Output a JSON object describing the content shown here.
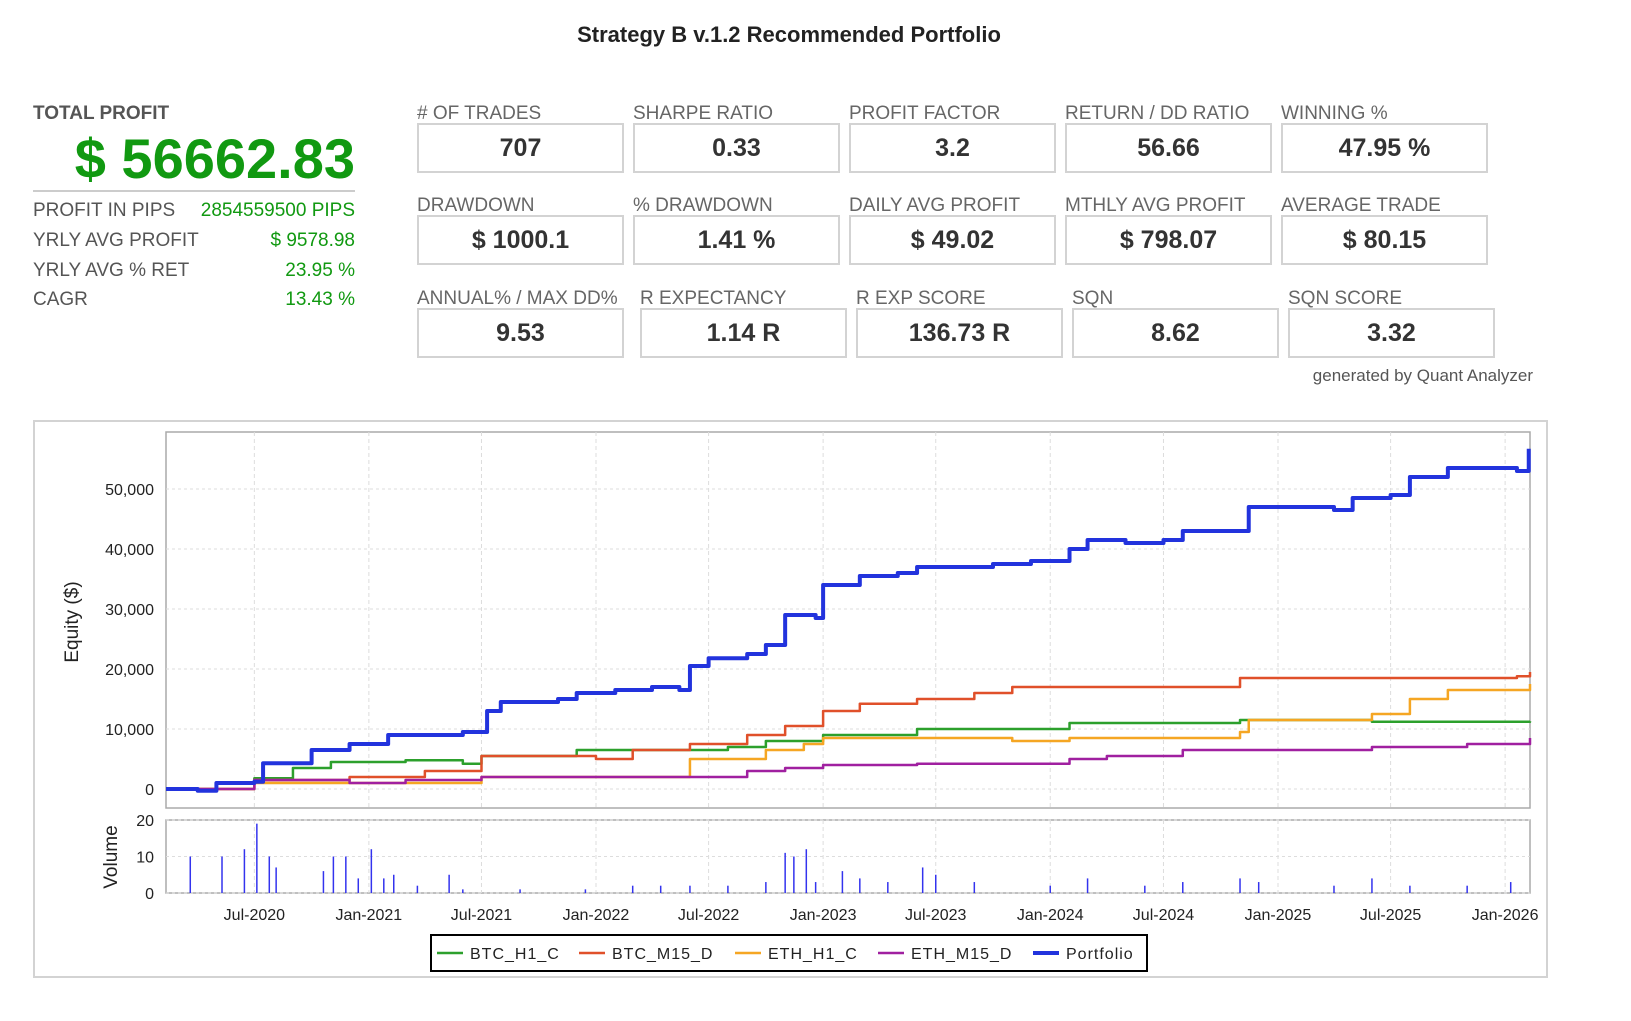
{
  "title": "Strategy B v.1.2 Recommended Portfolio",
  "summary": {
    "total_profit_label": "TOTAL PROFIT",
    "total_profit_value": "$ 56662.83",
    "rows": [
      {
        "label": "PROFIT IN PIPS",
        "value": "2854559500 PIPS"
      },
      {
        "label": "YRLY AVG PROFIT",
        "value": "$ 9578.98"
      },
      {
        "label": "YRLY AVG % RET",
        "value": "23.95 %"
      },
      {
        "label": "CAGR",
        "value": "13.43 %"
      }
    ]
  },
  "metrics": [
    {
      "label": "# OF TRADES",
      "value": "707"
    },
    {
      "label": "SHARPE RATIO",
      "value": "0.33"
    },
    {
      "label": "PROFIT FACTOR",
      "value": "3.2"
    },
    {
      "label": "RETURN / DD RATIO",
      "value": "56.66"
    },
    {
      "label": "WINNING %",
      "value": "47.95 %"
    },
    {
      "label": "DRAWDOWN",
      "value": "$ 1000.1"
    },
    {
      "label": "% DRAWDOWN",
      "value": "1.41 %"
    },
    {
      "label": "DAILY AVG PROFIT",
      "value": "$ 49.02"
    },
    {
      "label": "MTHLY AVG PROFIT",
      "value": "$ 798.07"
    },
    {
      "label": "AVERAGE TRADE",
      "value": "$ 80.15"
    },
    {
      "label": "ANNUAL% / MAX DD%",
      "value": "9.53"
    },
    {
      "label": "R EXPECTANCY",
      "value": "1.14 R"
    },
    {
      "label": "R EXP SCORE",
      "value": "136.73 R"
    },
    {
      "label": "SQN",
      "value": "8.62"
    },
    {
      "label": "SQN SCORE",
      "value": "3.32"
    }
  ],
  "generated_by": "generated by Quant Analyzer",
  "chart_data": {
    "type": "line",
    "ylabel": "Equity ($)",
    "ylim": [
      -2000,
      60000
    ],
    "yticks": [
      0,
      10000,
      20000,
      30000,
      40000,
      50000
    ],
    "ytick_labels": [
      "0",
      "10,000",
      "20,000",
      "30,000",
      "40,000",
      "50,000"
    ],
    "xlim": [
      "2020-02-10",
      "2026-02-10"
    ],
    "xticks": [
      "2020-07-01",
      "2021-01-01",
      "2021-07-01",
      "2022-01-01",
      "2022-07-01",
      "2023-01-01",
      "2023-07-01",
      "2024-01-01",
      "2024-07-01",
      "2025-01-01",
      "2025-07-01",
      "2026-01-01"
    ],
    "xtick_labels": [
      "Jul-2020",
      "Jan-2021",
      "Jul-2021",
      "Jan-2022",
      "Jul-2022",
      "Jan-2023",
      "Jul-2023",
      "Jan-2024",
      "Jul-2024",
      "Jan-2025",
      "Jul-2025",
      "Jan-2026"
    ],
    "grid": true,
    "legend_position": "bottom",
    "series": [
      {
        "name": "BTC_H1_C",
        "color": "#2ca02c",
        "points": [
          [
            "2020-02-10",
            0
          ],
          [
            "2020-05-01",
            1000
          ],
          [
            "2020-07-01",
            1800
          ],
          [
            "2020-09-01",
            3500
          ],
          [
            "2020-11-01",
            4500
          ],
          [
            "2021-03-01",
            4800
          ],
          [
            "2021-06-01",
            4200
          ],
          [
            "2021-07-01",
            5500
          ],
          [
            "2021-12-01",
            6500
          ],
          [
            "2022-05-01",
            6500
          ],
          [
            "2022-08-01",
            7000
          ],
          [
            "2022-10-01",
            8000
          ],
          [
            "2023-01-01",
            9000
          ],
          [
            "2023-06-01",
            10000
          ],
          [
            "2023-12-01",
            10000
          ],
          [
            "2024-02-01",
            11000
          ],
          [
            "2024-11-01",
            11500
          ],
          [
            "2025-06-01",
            11200
          ],
          [
            "2026-02-10",
            11300
          ]
        ]
      },
      {
        "name": "BTC_M15_D",
        "color": "#e0502a",
        "points": [
          [
            "2020-02-10",
            0
          ],
          [
            "2020-05-01",
            0
          ],
          [
            "2020-07-01",
            1500
          ],
          [
            "2020-12-01",
            2000
          ],
          [
            "2021-04-01",
            3000
          ],
          [
            "2021-07-01",
            5500
          ],
          [
            "2022-01-01",
            5000
          ],
          [
            "2022-03-01",
            6500
          ],
          [
            "2022-06-01",
            7500
          ],
          [
            "2022-09-01",
            9000
          ],
          [
            "2022-11-01",
            10500
          ],
          [
            "2023-01-01",
            13000
          ],
          [
            "2023-03-01",
            14200
          ],
          [
            "2023-06-01",
            15000
          ],
          [
            "2023-09-01",
            16000
          ],
          [
            "2023-11-01",
            17000
          ],
          [
            "2024-10-01",
            17000
          ],
          [
            "2024-11-01",
            18500
          ],
          [
            "2025-06-01",
            18500
          ],
          [
            "2026-01-20",
            18800
          ],
          [
            "2026-02-10",
            19500
          ]
        ]
      },
      {
        "name": "ETH_H1_C",
        "color": "#f5a623",
        "points": [
          [
            "2020-02-10",
            0
          ],
          [
            "2020-07-01",
            1000
          ],
          [
            "2021-06-01",
            1000
          ],
          [
            "2021-07-01",
            2000
          ],
          [
            "2022-05-01",
            2000
          ],
          [
            "2022-06-01",
            5000
          ],
          [
            "2022-10-01",
            6500
          ],
          [
            "2022-12-01",
            7500
          ],
          [
            "2023-01-01",
            8500
          ],
          [
            "2023-06-01",
            8500
          ],
          [
            "2023-11-01",
            8000
          ],
          [
            "2024-02-01",
            8500
          ],
          [
            "2024-11-01",
            9500
          ],
          [
            "2024-11-15",
            11500
          ],
          [
            "2025-05-01",
            11500
          ],
          [
            "2025-06-01",
            12500
          ],
          [
            "2025-08-01",
            15000
          ],
          [
            "2025-10-01",
            16500
          ],
          [
            "2026-01-20",
            16500
          ],
          [
            "2026-02-10",
            17500
          ]
        ]
      },
      {
        "name": "ETH_M15_D",
        "color": "#a020a0",
        "points": [
          [
            "2020-02-10",
            0
          ],
          [
            "2020-07-01",
            1500
          ],
          [
            "2020-12-01",
            1000
          ],
          [
            "2021-03-01",
            1500
          ],
          [
            "2021-07-01",
            2000
          ],
          [
            "2022-06-01",
            2000
          ],
          [
            "2022-09-01",
            3000
          ],
          [
            "2022-11-01",
            3500
          ],
          [
            "2023-01-01",
            4000
          ],
          [
            "2023-06-01",
            4200
          ],
          [
            "2023-12-01",
            4200
          ],
          [
            "2024-02-01",
            5000
          ],
          [
            "2024-04-01",
            5500
          ],
          [
            "2024-07-01",
            5500
          ],
          [
            "2024-08-01",
            6500
          ],
          [
            "2025-03-01",
            6500
          ],
          [
            "2025-06-01",
            7000
          ],
          [
            "2025-11-01",
            7500
          ],
          [
            "2026-01-20",
            7500
          ],
          [
            "2026-02-10",
            8500
          ]
        ]
      },
      {
        "name": "Portfolio",
        "color": "#2233dd",
        "points": [
          [
            "2020-02-10",
            0
          ],
          [
            "2020-04-01",
            -300
          ],
          [
            "2020-05-01",
            1000
          ],
          [
            "2020-07-01",
            1200
          ],
          [
            "2020-07-15",
            4300
          ],
          [
            "2020-09-01",
            4300
          ],
          [
            "2020-10-01",
            6500
          ],
          [
            "2020-12-01",
            7500
          ],
          [
            "2021-02-01",
            9000
          ],
          [
            "2021-06-01",
            9500
          ],
          [
            "2021-07-10",
            13000
          ],
          [
            "2021-08-01",
            14500
          ],
          [
            "2021-11-01",
            15000
          ],
          [
            "2021-12-01",
            16000
          ],
          [
            "2022-02-01",
            16500
          ],
          [
            "2022-04-01",
            17000
          ],
          [
            "2022-05-15",
            16500
          ],
          [
            "2022-06-01",
            20500
          ],
          [
            "2022-07-01",
            21800
          ],
          [
            "2022-09-01",
            22500
          ],
          [
            "2022-10-01",
            24000
          ],
          [
            "2022-11-01",
            29000
          ],
          [
            "2022-12-20",
            28500
          ],
          [
            "2023-01-01",
            34000
          ],
          [
            "2023-03-01",
            35500
          ],
          [
            "2023-05-01",
            36000
          ],
          [
            "2023-06-01",
            37000
          ],
          [
            "2023-08-01",
            37000
          ],
          [
            "2023-10-01",
            37500
          ],
          [
            "2023-12-01",
            38000
          ],
          [
            "2024-02-01",
            40000
          ],
          [
            "2024-03-01",
            41500
          ],
          [
            "2024-05-01",
            41000
          ],
          [
            "2024-07-01",
            41500
          ],
          [
            "2024-08-01",
            43000
          ],
          [
            "2024-11-01",
            43000
          ],
          [
            "2024-11-15",
            47000
          ],
          [
            "2025-01-01",
            47000
          ],
          [
            "2025-04-01",
            46500
          ],
          [
            "2025-05-01",
            48500
          ],
          [
            "2025-07-01",
            49000
          ],
          [
            "2025-08-01",
            52000
          ],
          [
            "2025-10-01",
            53500
          ],
          [
            "2025-12-01",
            53500
          ],
          [
            "2026-01-20",
            53000
          ],
          [
            "2026-02-08",
            56700
          ]
        ]
      }
    ],
    "volume": {
      "ylabel": "Volume",
      "ylim": [
        0,
        20
      ],
      "yticks": [
        0,
        10,
        20
      ],
      "ytick_labels": [
        "0",
        "10",
        "20"
      ],
      "color": "#3333ee",
      "bars": [
        [
          "2020-03-20",
          10
        ],
        [
          "2020-05-10",
          10
        ],
        [
          "2020-06-15",
          12
        ],
        [
          "2020-07-05",
          19
        ],
        [
          "2020-07-25",
          10
        ],
        [
          "2020-08-05",
          7
        ],
        [
          "2020-10-20",
          6
        ],
        [
          "2020-11-05",
          10
        ],
        [
          "2020-11-25",
          10
        ],
        [
          "2020-12-15",
          4
        ],
        [
          "2021-01-05",
          12
        ],
        [
          "2021-01-25",
          4
        ],
        [
          "2021-02-10",
          5
        ],
        [
          "2021-03-20",
          2
        ],
        [
          "2021-05-10",
          5
        ],
        [
          "2021-06-01",
          1
        ],
        [
          "2021-09-01",
          1
        ],
        [
          "2021-12-15",
          1
        ],
        [
          "2022-03-01",
          2
        ],
        [
          "2022-04-15",
          2
        ],
        [
          "2022-06-01",
          2
        ],
        [
          "2022-08-01",
          2
        ],
        [
          "2022-10-01",
          3
        ],
        [
          "2022-11-01",
          11
        ],
        [
          "2022-11-15",
          10
        ],
        [
          "2022-12-05",
          12
        ],
        [
          "2022-12-20",
          3
        ],
        [
          "2023-02-01",
          6
        ],
        [
          "2023-03-01",
          4
        ],
        [
          "2023-04-15",
          3
        ],
        [
          "2023-06-10",
          7
        ],
        [
          "2023-07-01",
          5
        ],
        [
          "2023-09-01",
          3
        ],
        [
          "2024-01-01",
          2
        ],
        [
          "2024-03-01",
          4
        ],
        [
          "2024-06-01",
          2
        ],
        [
          "2024-08-01",
          3
        ],
        [
          "2024-11-01",
          4
        ],
        [
          "2024-12-01",
          3
        ],
        [
          "2025-04-01",
          2
        ],
        [
          "2025-06-01",
          4
        ],
        [
          "2025-08-01",
          2
        ],
        [
          "2025-11-01",
          2
        ],
        [
          "2026-01-10",
          3
        ]
      ]
    }
  }
}
